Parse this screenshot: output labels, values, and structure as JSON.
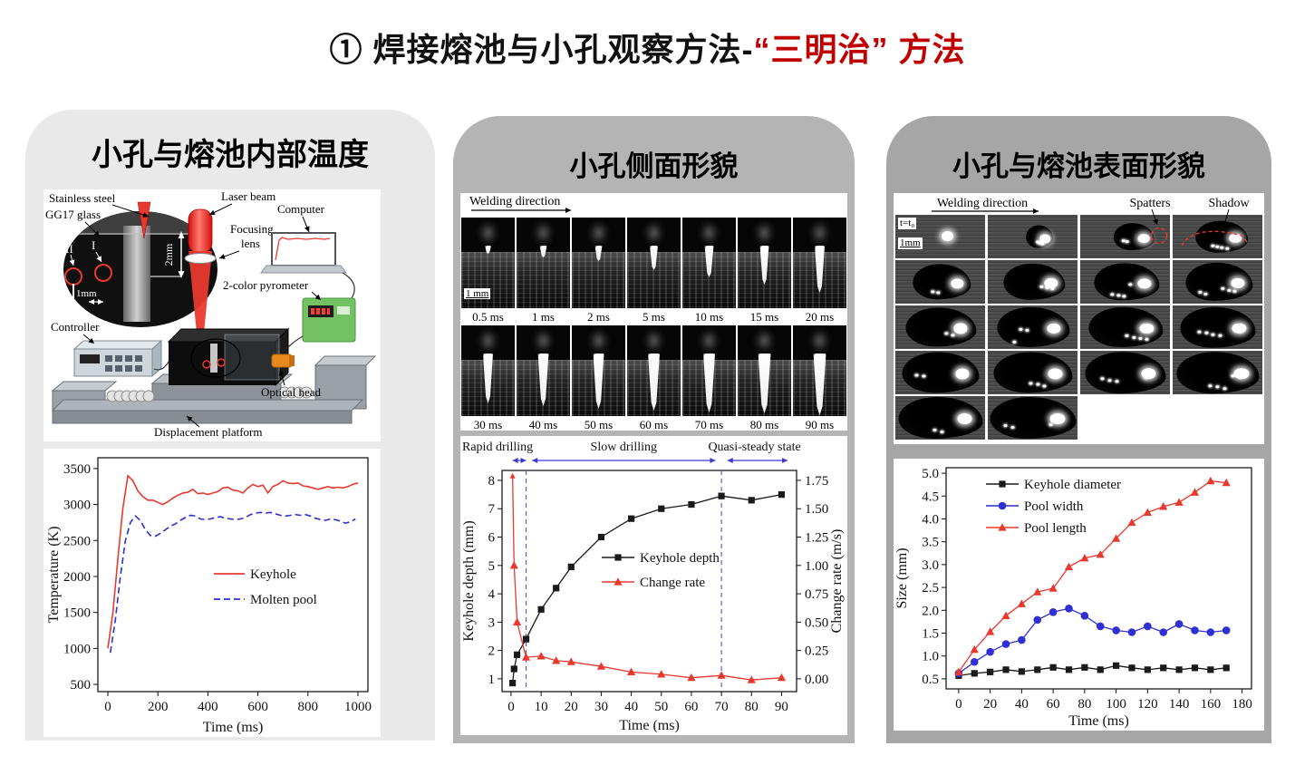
{
  "title": {
    "black": "① 焊接熔池与小孔观察方法-",
    "red": "“三明治” 方法"
  },
  "colors": {
    "accent_red": "#c00000",
    "panel_left_bg": "#e9e9e9",
    "panel_mid_bg": "#b4b4b4",
    "panel_right_bg": "#a6a6a6",
    "series_red": "#e8392f",
    "series_blue": "#2f2fd3",
    "series_black": "#1a1a1a",
    "annotation_blue": "#4444cc"
  },
  "panels": {
    "left": {
      "title": "小孔与熔池内部温度",
      "diagram": {
        "labels": {
          "stainless_steel": "Stainless steel",
          "gg17_glass": "GG17 glass",
          "laser_beam": "Laser beam",
          "computer": "Computer",
          "focusing": "Focusing",
          "lens": "lens",
          "pyrometer": "2-color pyrometer",
          "controller": "Controller",
          "optical_head": "Optical head",
          "displacement_platform": "Displacement platform",
          "dim_2mm": "2mm",
          "dim_1mm": "1mm",
          "point_I": "I",
          "point_II": "II"
        }
      }
    },
    "middle": {
      "title": "小孔侧面形貌",
      "images": {
        "welding_direction": "Welding direction",
        "scale_bar": "1 mm",
        "row1_labels": [
          "0.5 ms",
          "1 ms",
          "2 ms",
          "5 ms",
          "10 ms",
          "15 ms",
          "20 ms"
        ],
        "row2_labels": [
          "30 ms",
          "40 ms",
          "50 ms",
          "60 ms",
          "70 ms",
          "80 ms",
          "90 ms"
        ]
      }
    },
    "right": {
      "title": "小孔与熔池表面形貌",
      "images": {
        "welding_direction": "Welding direction",
        "spatters": "Spatters",
        "shadow": "Shadow",
        "first_frame_time": "t=t₀",
        "scale_bar": "1mm",
        "rows": [
          4,
          4,
          4,
          4,
          2
        ]
      }
    }
  },
  "chart_data": [
    {
      "id": "internal-temperature",
      "type": "line",
      "xlabel": "Time (ms)",
      "ylabel": "Temperature (K)",
      "xlim": [
        -40,
        1040
      ],
      "ylim": [
        400,
        3650
      ],
      "xticks": [
        0,
        200,
        400,
        600,
        800,
        1000
      ],
      "yticks": [
        500,
        1000,
        1500,
        2000,
        2500,
        3000,
        3500
      ],
      "legend_position": "middle-right",
      "grid": false,
      "series": [
        {
          "name": "Keyhole",
          "color": "#e8392f",
          "dash": false,
          "x": [
            0,
            20,
            40,
            60,
            80,
            100,
            120,
            140,
            160,
            180,
            200,
            220,
            240,
            260,
            280,
            300,
            320,
            340,
            360,
            380,
            400,
            420,
            440,
            460,
            480,
            500,
            520,
            540,
            560,
            580,
            600,
            620,
            640,
            660,
            680,
            700,
            720,
            740,
            760,
            780,
            800,
            820,
            840,
            860,
            880,
            900,
            920,
            940,
            960,
            980,
            1000
          ],
          "y": [
            1000,
            1500,
            2250,
            2950,
            3400,
            3330,
            3190,
            3110,
            3060,
            3060,
            3030,
            3000,
            3040,
            3090,
            3130,
            3160,
            3170,
            3210,
            3150,
            3160,
            3140,
            3160,
            3180,
            3230,
            3240,
            3200,
            3190,
            3160,
            3230,
            3280,
            3250,
            3270,
            3160,
            3250,
            3280,
            3330,
            3300,
            3290,
            3300,
            3260,
            3250,
            3230,
            3210,
            3230,
            3250,
            3230,
            3240,
            3230,
            3250,
            3280,
            3300
          ]
        },
        {
          "name": "Molten pool",
          "color": "#2f2fd3",
          "dash": true,
          "x": [
            10,
            30,
            50,
            70,
            90,
            110,
            130,
            150,
            170,
            190,
            210,
            230,
            250,
            270,
            290,
            310,
            330,
            350,
            370,
            390,
            410,
            430,
            450,
            470,
            490,
            510,
            530,
            550,
            570,
            590,
            610,
            630,
            650,
            670,
            690,
            710,
            730,
            750,
            770,
            790,
            810,
            830,
            850,
            870,
            890,
            910,
            930,
            950,
            970,
            990
          ],
          "y": [
            940,
            1400,
            2000,
            2500,
            2750,
            2840,
            2780,
            2650,
            2570,
            2560,
            2600,
            2650,
            2700,
            2730,
            2780,
            2820,
            2850,
            2840,
            2800,
            2790,
            2800,
            2820,
            2830,
            2810,
            2800,
            2790,
            2800,
            2820,
            2860,
            2880,
            2890,
            2880,
            2890,
            2870,
            2850,
            2840,
            2850,
            2860,
            2850,
            2860,
            2840,
            2810,
            2790,
            2780,
            2800,
            2790,
            2770,
            2740,
            2760,
            2800
          ]
        }
      ]
    },
    {
      "id": "keyhole-depth",
      "type": "line",
      "xlabel": "Time (ms)",
      "ylabel_left": "Keyhole depth (mm)",
      "ylabel_right": "Change rate (m/s)",
      "xlim": [
        -3,
        95
      ],
      "ylim_left": [
        0.55,
        8.35
      ],
      "xticks": [
        0,
        10,
        20,
        30,
        40,
        50,
        60,
        70,
        80,
        90
      ],
      "yticks_left": [
        1,
        2,
        3,
        4,
        5,
        6,
        7,
        8
      ],
      "yticks_right": [
        0,
        0.25,
        0.5,
        0.75,
        1,
        1.25,
        1.5,
        1.75
      ],
      "right_axis_map": {
        "scale": 0.25,
        "offset": 1
      },
      "dividers": [
        5,
        70
      ],
      "regions": [
        {
          "label": "Rapid drilling",
          "from": 0,
          "to": 5
        },
        {
          "label": "Slow drilling",
          "from": 5,
          "to": 70
        },
        {
          "label": "Quasi-steady state",
          "from": 70,
          "to": 93
        }
      ],
      "series": [
        {
          "name": "Keyhole depth",
          "axis": "left",
          "marker": "square",
          "color": "#1a1a1a",
          "x": [
            0.5,
            1,
            2,
            5,
            10,
            15,
            20,
            30,
            40,
            50,
            60,
            70,
            80,
            90
          ],
          "y": [
            0.85,
            1.35,
            1.85,
            2.4,
            3.45,
            4.2,
            4.95,
            6.0,
            6.65,
            7.0,
            7.15,
            7.45,
            7.3,
            7.5
          ]
        },
        {
          "name": "Change rate",
          "axis": "right",
          "marker": "triangle",
          "color": "#e8392f",
          "first_point_offscale": true,
          "x": [
            0.5,
            1,
            2,
            5,
            10,
            15,
            20,
            30,
            40,
            50,
            60,
            70,
            80,
            90
          ],
          "y": [
            1.8,
            1.0,
            0.5,
            0.19,
            0.2,
            0.16,
            0.15,
            0.11,
            0.06,
            0.04,
            0.01,
            0.03,
            -0.01,
            0.01
          ]
        }
      ]
    },
    {
      "id": "surface-size",
      "type": "line",
      "xlabel": "Time (ms)",
      "ylabel": "Size (mm)",
      "xlim": [
        -8,
        186
      ],
      "ylim": [
        0.28,
        5.12
      ],
      "xticks": [
        0,
        20,
        40,
        60,
        80,
        100,
        120,
        140,
        160,
        180
      ],
      "yticks": [
        0.5,
        1.0,
        1.5,
        2.0,
        2.5,
        3.0,
        3.5,
        4.0,
        4.5,
        5.0
      ],
      "legend_position": "top-left",
      "x": [
        0,
        10,
        20,
        30,
        40,
        50,
        60,
        70,
        80,
        90,
        100,
        110,
        120,
        130,
        140,
        150,
        160,
        170
      ],
      "series": [
        {
          "name": "Keyhole diameter",
          "marker": "square",
          "color": "#1a1a1a",
          "y": [
            0.57,
            0.62,
            0.65,
            0.7,
            0.66,
            0.7,
            0.75,
            0.7,
            0.75,
            0.7,
            0.79,
            0.74,
            0.7,
            0.74,
            0.7,
            0.74,
            0.7,
            0.74
          ]
        },
        {
          "name": "Pool width",
          "marker": "circle",
          "color": "#2f2fd3",
          "y": [
            0.62,
            0.87,
            1.09,
            1.26,
            1.35,
            1.79,
            1.96,
            2.04,
            1.88,
            1.65,
            1.56,
            1.52,
            1.65,
            1.52,
            1.7,
            1.56,
            1.52,
            1.56
          ]
        },
        {
          "name": "Pool length",
          "marker": "triangle",
          "color": "#e8392f",
          "y": [
            0.65,
            1.14,
            1.53,
            1.88,
            2.14,
            2.4,
            2.48,
            2.95,
            3.14,
            3.22,
            3.57,
            3.92,
            4.14,
            4.27,
            4.36,
            4.58,
            4.83,
            4.79
          ]
        }
      ]
    }
  ]
}
